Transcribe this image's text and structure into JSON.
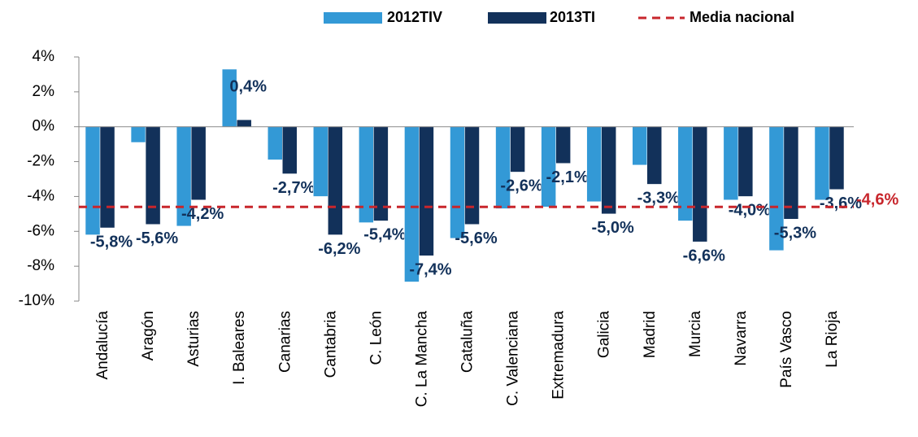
{
  "chart_data": {
    "type": "bar",
    "categories": [
      "Andalucía",
      "Aragón",
      "Asturias",
      "I. Baleares",
      "Canarias",
      "Cantabria",
      "C. León",
      "C. La Mancha",
      "Cataluña",
      "C. Valenciana",
      "Extremadura",
      "Galicia",
      "Madrid",
      "Murcia",
      "Navarra",
      "País Vasco",
      "La Rioja"
    ],
    "series": [
      {
        "name": "2012TIV",
        "color": "#3399d6",
        "values": [
          -6.2,
          -0.9,
          -5.7,
          3.3,
          -1.9,
          -4.0,
          -5.5,
          -8.9,
          -6.4,
          -4.7,
          -4.6,
          -4.3,
          -2.2,
          -5.4,
          -4.2,
          -7.1,
          -4.2
        ]
      },
      {
        "name": "2013TI",
        "color": "#12315a",
        "values": [
          -5.8,
          -5.6,
          -4.2,
          0.4,
          -2.7,
          -6.2,
          -5.4,
          -7.4,
          -5.6,
          -2.6,
          -2.1,
          -5.0,
          -3.3,
          -6.6,
          -4.0,
          -5.3,
          -3.6
        ],
        "value_labels": [
          "-5,8%",
          "-5,6%",
          "-4,2%",
          "0,4%",
          "-2,7%",
          "-6,2%",
          "-5,4%",
          "-7,4%",
          "-5,6%",
          "-2,6%",
          "-2,1%",
          "-5,0%",
          "-3,3%",
          "-6,6%",
          "-4,0%",
          "-5,3%",
          "-3,6%"
        ]
      }
    ],
    "reference_line": {
      "name": "Media nacional",
      "color": "#c8262c",
      "value": -4.6,
      "value_label": "-4,6%"
    },
    "ylim": [
      -10,
      4
    ],
    "yticks": [
      {
        "value": -10,
        "label": "-10%"
      },
      {
        "value": -8,
        "label": "-8%"
      },
      {
        "value": -6,
        "label": "-6%"
      },
      {
        "value": -4,
        "label": "-4%"
      },
      {
        "value": -2,
        "label": "-2%"
      },
      {
        "value": 0,
        "label": "0%"
      },
      {
        "value": 2,
        "label": "2%"
      },
      {
        "value": 4,
        "label": "4%"
      }
    ]
  }
}
